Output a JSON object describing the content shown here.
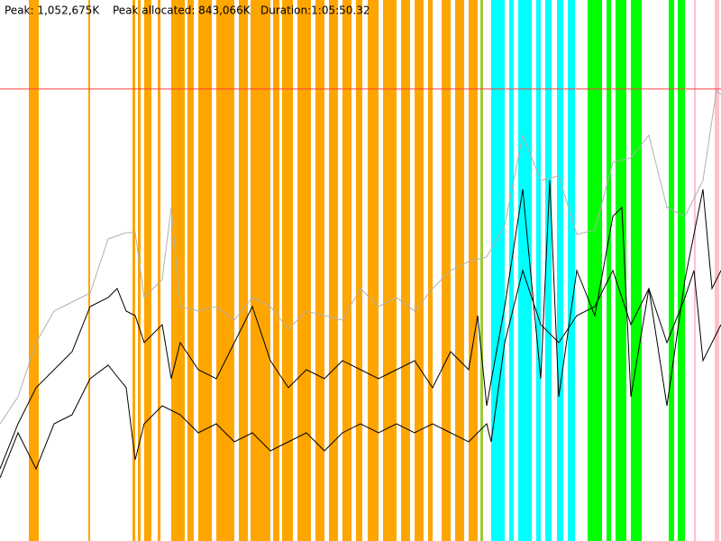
{
  "chart_data": {
    "type": "line",
    "peak": {
      "value": 1052675,
      "label": "Peak: 1,052,675K",
      "color": "#ff4040"
    },
    "peak_allocated": "Peak allocated: 843,066K",
    "duration": "Duration:1:05:50.32",
    "xlim": [
      0,
      800
    ],
    "ylim": [
      0,
      1260000
    ],
    "bands": [
      {
        "color": "#ffa500",
        "ranges": [
          [
            32,
            43
          ],
          [
            98,
            100
          ],
          [
            147,
            150
          ],
          [
            153,
            156
          ],
          [
            160,
            168
          ],
          [
            175,
            178
          ],
          [
            190,
            205
          ],
          [
            208,
            215
          ],
          [
            220,
            235
          ],
          [
            240,
            260
          ],
          [
            265,
            275
          ],
          [
            278,
            300
          ],
          [
            303,
            310
          ],
          [
            313,
            325
          ],
          [
            330,
            345
          ],
          [
            350,
            360
          ],
          [
            365,
            375
          ],
          [
            380,
            390
          ],
          [
            395,
            402
          ],
          [
            408,
            420
          ],
          [
            425,
            440
          ],
          [
            445,
            455
          ],
          [
            460,
            470
          ],
          [
            475,
            480
          ],
          [
            490,
            500
          ],
          [
            505,
            515
          ],
          [
            520,
            530
          ]
        ]
      },
      {
        "color": "#9acd32",
        "ranges": [
          [
            533,
            536
          ]
        ]
      },
      {
        "color": "#00ffff",
        "ranges": [
          [
            545,
            560
          ],
          [
            565,
            570
          ],
          [
            575,
            590
          ],
          [
            595,
            600
          ],
          [
            605,
            612
          ],
          [
            618,
            625
          ],
          [
            630,
            638
          ]
        ]
      },
      {
        "color": "#00ff00",
        "ranges": [
          [
            652,
            668
          ],
          [
            673,
            678
          ],
          [
            683,
            695
          ],
          [
            700,
            712
          ],
          [
            742,
            748
          ],
          [
            752,
            760
          ]
        ]
      },
      {
        "color": "#ffc0cb",
        "ranges": [
          [
            770,
            772
          ],
          [
            793,
            798
          ]
        ]
      }
    ],
    "series": [
      {
        "color": "#b0b0b0",
        "x": [
          0,
          20,
          40,
          60,
          80,
          100,
          120,
          140,
          150,
          160,
          180,
          190,
          200,
          220,
          240,
          260,
          280,
          300,
          320,
          340,
          360,
          380,
          400,
          420,
          440,
          460,
          480,
          500,
          520,
          540,
          560,
          580,
          600,
          620,
          640,
          660,
          680,
          700,
          720,
          740,
          760,
          780,
          795,
          800
        ],
        "values": [
          273000,
          336000,
          462000,
          535500,
          556500,
          577500,
          703500,
          718200,
          718200,
          567000,
          609000,
          777000,
          546000,
          535500,
          546000,
          514500,
          567000,
          546000,
          493500,
          535500,
          525000,
          514500,
          588000,
          546000,
          567000,
          535500,
          588000,
          630000,
          651000,
          661500,
          735000,
          945000,
          840000,
          850500,
          714000,
          724500,
          882000,
          892500,
          945000,
          777000,
          756000,
          840000,
          1050000,
          1039500
        ]
      },
      {
        "color": "#000000",
        "x": [
          0,
          20,
          40,
          60,
          80,
          100,
          120,
          130,
          140,
          150,
          160,
          180,
          190,
          200,
          220,
          240,
          260,
          280,
          300,
          320,
          340,
          360,
          380,
          400,
          420,
          440,
          460,
          480,
          500,
          520,
          530,
          540,
          560,
          580,
          600,
          610,
          620,
          640,
          660,
          680,
          690,
          700,
          720,
          740,
          760,
          780,
          790,
          800
        ],
        "values": [
          168000,
          273000,
          357000,
          399000,
          441000,
          546000,
          567000,
          588000,
          535500,
          525000,
          462000,
          504000,
          378000,
          462000,
          399000,
          378000,
          462000,
          546000,
          420000,
          357000,
          399000,
          378000,
          420000,
          399000,
          378000,
          399000,
          420000,
          357000,
          441000,
          399000,
          525000,
          315000,
          546000,
          819000,
          378000,
          840000,
          336000,
          630000,
          525000,
          756000,
          777000,
          336000,
          588000,
          315000,
          609000,
          819000,
          588000,
          630000
        ]
      },
      {
        "color": "#000000",
        "x": [
          0,
          20,
          40,
          60,
          80,
          100,
          120,
          140,
          150,
          160,
          180,
          200,
          220,
          240,
          260,
          280,
          300,
          320,
          340,
          360,
          380,
          400,
          420,
          440,
          460,
          480,
          500,
          520,
          540,
          545,
          560,
          580,
          600,
          620,
          640,
          660,
          680,
          700,
          720,
          740,
          760,
          770,
          780,
          790,
          800
        ],
        "values": [
          147000,
          252000,
          168000,
          273000,
          294000,
          378000,
          409500,
          357000,
          189000,
          273000,
          315000,
          294000,
          252000,
          273000,
          231000,
          252000,
          210000,
          231000,
          252000,
          210000,
          252000,
          273000,
          252000,
          273000,
          252000,
          273000,
          252000,
          231000,
          273000,
          231000,
          462000,
          630000,
          504000,
          462000,
          525000,
          546000,
          630000,
          504000,
          588000,
          462000,
          567000,
          630000,
          420000,
          462000,
          504000
        ]
      }
    ]
  }
}
